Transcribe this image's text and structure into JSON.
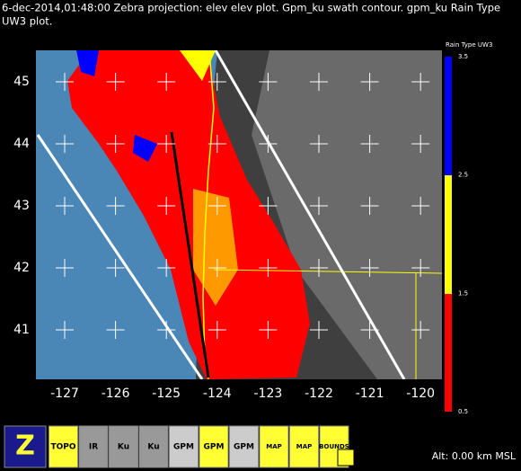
{
  "header": {
    "title_line1": "6-dec-2014,01:48:00  Zebra projection: elev elev  plot.  Gpm_ku swath contour.  gpm_ku Rain Type",
    "title_line2": "UW3  plot."
  },
  "colorbar": {
    "title": "Rain Type UW3",
    "labels": [
      "3.5",
      "2.5",
      "1.5",
      "0.5"
    ]
  },
  "map": {
    "lat_labels": [
      "45",
      "44",
      "43",
      "42",
      "41"
    ],
    "lon_labels": [
      "-127",
      "-126",
      "-125",
      "-124",
      "-123",
      "-122",
      "-121",
      "-120"
    ]
  },
  "toolbar": {
    "icons": [
      "Z",
      "TOPO",
      "IR",
      "Ku",
      "Ku",
      "GPM",
      "GPM",
      "GPM",
      "MAP",
      "MAP",
      "BOUNDS"
    ]
  },
  "status": "Alt: 0.00 km MSL"
}
